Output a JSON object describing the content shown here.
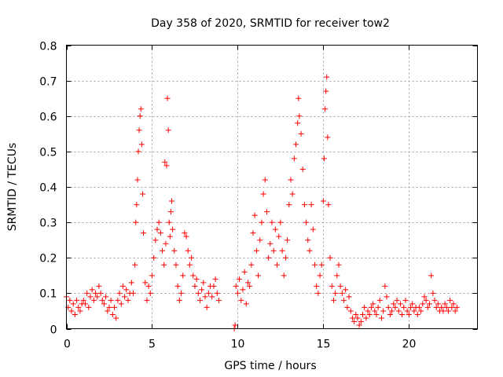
{
  "chart_data": {
    "type": "scatter",
    "title": "Day 358 of 2020, SRMTID for receiver tow2",
    "xlabel": "GPS time / hours",
    "ylabel": "SRMTID / TECUs",
    "xlim": [
      0,
      24
    ],
    "ylim": [
      0,
      0.8
    ],
    "x_ticks": [
      0,
      5,
      10,
      15,
      20
    ],
    "y_ticks": [
      0,
      0.1,
      0.2,
      0.3,
      0.4,
      0.5,
      0.6,
      0.7,
      0.8
    ],
    "x_tick_labels": [
      "0",
      "5",
      "10",
      "15",
      "20"
    ],
    "y_tick_labels": [
      "0",
      "0.1",
      "0.2",
      "0.3",
      "0.4",
      "0.5",
      "0.6",
      "0.7",
      "0.8"
    ],
    "grid": true,
    "marker": "+",
    "color": "#ff0000",
    "series": [
      {
        "name": "SRMTID",
        "points": [
          [
            0.0,
            0.09
          ],
          [
            0.1,
            0.06
          ],
          [
            0.2,
            0.08
          ],
          [
            0.3,
            0.05
          ],
          [
            0.4,
            0.07
          ],
          [
            0.5,
            0.04
          ],
          [
            0.6,
            0.08
          ],
          [
            0.7,
            0.06
          ],
          [
            0.8,
            0.05
          ],
          [
            0.9,
            0.07
          ],
          [
            1.0,
            0.08
          ],
          [
            1.1,
            0.07
          ],
          [
            1.2,
            0.1
          ],
          [
            1.3,
            0.06
          ],
          [
            1.4,
            0.09
          ],
          [
            1.5,
            0.11
          ],
          [
            1.6,
            0.08
          ],
          [
            1.7,
            0.1
          ],
          [
            1.8,
            0.09
          ],
          [
            1.9,
            0.12
          ],
          [
            2.0,
            0.1
          ],
          [
            2.1,
            0.08
          ],
          [
            2.2,
            0.07
          ],
          [
            2.3,
            0.09
          ],
          [
            2.4,
            0.05
          ],
          [
            2.5,
            0.06
          ],
          [
            2.6,
            0.08
          ],
          [
            2.7,
            0.04
          ],
          [
            2.8,
            0.06
          ],
          [
            2.9,
            0.03
          ],
          [
            3.0,
            0.08
          ],
          [
            3.1,
            0.1
          ],
          [
            3.2,
            0.07
          ],
          [
            3.3,
            0.12
          ],
          [
            3.4,
            0.09
          ],
          [
            3.5,
            0.11
          ],
          [
            3.6,
            0.08
          ],
          [
            3.7,
            0.1
          ],
          [
            3.8,
            0.13
          ],
          [
            3.9,
            0.1
          ],
          [
            4.0,
            0.18
          ],
          [
            4.05,
            0.3
          ],
          [
            4.1,
            0.35
          ],
          [
            4.15,
            0.42
          ],
          [
            4.2,
            0.5
          ],
          [
            4.25,
            0.56
          ],
          [
            4.3,
            0.6
          ],
          [
            4.35,
            0.62
          ],
          [
            4.4,
            0.52
          ],
          [
            4.45,
            0.38
          ],
          [
            4.5,
            0.27
          ],
          [
            4.6,
            0.13
          ],
          [
            4.7,
            0.08
          ],
          [
            4.8,
            0.12
          ],
          [
            4.9,
            0.1
          ],
          [
            5.0,
            0.15
          ],
          [
            5.1,
            0.2
          ],
          [
            5.2,
            0.25
          ],
          [
            5.3,
            0.28
          ],
          [
            5.4,
            0.3
          ],
          [
            5.5,
            0.27
          ],
          [
            5.6,
            0.22
          ],
          [
            5.7,
            0.18
          ],
          [
            5.75,
            0.47
          ],
          [
            5.8,
            0.24
          ],
          [
            5.85,
            0.46
          ],
          [
            5.9,
            0.65
          ],
          [
            5.95,
            0.56
          ],
          [
            6.0,
            0.3
          ],
          [
            6.05,
            0.26
          ],
          [
            6.1,
            0.33
          ],
          [
            6.15,
            0.36
          ],
          [
            6.2,
            0.28
          ],
          [
            6.3,
            0.22
          ],
          [
            6.4,
            0.18
          ],
          [
            6.5,
            0.12
          ],
          [
            6.6,
            0.08
          ],
          [
            6.7,
            0.1
          ],
          [
            6.8,
            0.15
          ],
          [
            6.9,
            0.27
          ],
          [
            7.0,
            0.26
          ],
          [
            7.1,
            0.22
          ],
          [
            7.2,
            0.18
          ],
          [
            7.3,
            0.2
          ],
          [
            7.4,
            0.15
          ],
          [
            7.5,
            0.12
          ],
          [
            7.6,
            0.14
          ],
          [
            7.7,
            0.1
          ],
          [
            7.8,
            0.08
          ],
          [
            7.9,
            0.11
          ],
          [
            8.0,
            0.13
          ],
          [
            8.1,
            0.09
          ],
          [
            8.2,
            0.06
          ],
          [
            8.3,
            0.1
          ],
          [
            8.4,
            0.12
          ],
          [
            8.5,
            0.09
          ],
          [
            8.6,
            0.12
          ],
          [
            8.7,
            0.14
          ],
          [
            8.8,
            0.1
          ],
          [
            8.9,
            0.08
          ],
          [
            9.8,
            0.0
          ],
          [
            9.85,
            0.01
          ],
          [
            9.9,
            0.12
          ],
          [
            10.0,
            0.1
          ],
          [
            10.1,
            0.14
          ],
          [
            10.2,
            0.08
          ],
          [
            10.3,
            0.11
          ],
          [
            10.4,
            0.16
          ],
          [
            10.5,
            0.07
          ],
          [
            10.6,
            0.13
          ],
          [
            10.7,
            0.12
          ],
          [
            10.8,
            0.18
          ],
          [
            10.9,
            0.27
          ],
          [
            11.0,
            0.32
          ],
          [
            11.1,
            0.22
          ],
          [
            11.2,
            0.15
          ],
          [
            11.3,
            0.25
          ],
          [
            11.4,
            0.3
          ],
          [
            11.5,
            0.38
          ],
          [
            11.6,
            0.42
          ],
          [
            11.7,
            0.33
          ],
          [
            11.8,
            0.2
          ],
          [
            11.9,
            0.24
          ],
          [
            12.0,
            0.3
          ],
          [
            12.1,
            0.22
          ],
          [
            12.2,
            0.28
          ],
          [
            12.3,
            0.18
          ],
          [
            12.4,
            0.26
          ],
          [
            12.5,
            0.3
          ],
          [
            12.6,
            0.22
          ],
          [
            12.7,
            0.15
          ],
          [
            12.8,
            0.2
          ],
          [
            12.9,
            0.25
          ],
          [
            13.0,
            0.35
          ],
          [
            13.1,
            0.42
          ],
          [
            13.2,
            0.38
          ],
          [
            13.3,
            0.48
          ],
          [
            13.4,
            0.52
          ],
          [
            13.5,
            0.58
          ],
          [
            13.55,
            0.65
          ],
          [
            13.6,
            0.6
          ],
          [
            13.7,
            0.55
          ],
          [
            13.8,
            0.45
          ],
          [
            13.9,
            0.35
          ],
          [
            14.0,
            0.3
          ],
          [
            14.1,
            0.25
          ],
          [
            14.2,
            0.22
          ],
          [
            14.3,
            0.35
          ],
          [
            14.4,
            0.28
          ],
          [
            14.5,
            0.18
          ],
          [
            14.6,
            0.12
          ],
          [
            14.7,
            0.1
          ],
          [
            14.8,
            0.15
          ],
          [
            14.9,
            0.18
          ],
          [
            15.0,
            0.36
          ],
          [
            15.05,
            0.48
          ],
          [
            15.1,
            0.62
          ],
          [
            15.15,
            0.67
          ],
          [
            15.2,
            0.71
          ],
          [
            15.25,
            0.54
          ],
          [
            15.3,
            0.35
          ],
          [
            15.4,
            0.2
          ],
          [
            15.5,
            0.12
          ],
          [
            15.6,
            0.08
          ],
          [
            15.7,
            0.1
          ],
          [
            15.8,
            0.15
          ],
          [
            15.9,
            0.18
          ],
          [
            16.0,
            0.12
          ],
          [
            16.1,
            0.1
          ],
          [
            16.2,
            0.08
          ],
          [
            16.3,
            0.11
          ],
          [
            16.4,
            0.06
          ],
          [
            16.5,
            0.09
          ],
          [
            16.6,
            0.05
          ],
          [
            16.7,
            0.03
          ],
          [
            16.8,
            0.02
          ],
          [
            16.9,
            0.04
          ],
          [
            17.0,
            0.03
          ],
          [
            17.1,
            0.01
          ],
          [
            17.2,
            0.02
          ],
          [
            17.3,
            0.04
          ],
          [
            17.4,
            0.06
          ],
          [
            17.5,
            0.03
          ],
          [
            17.6,
            0.05
          ],
          [
            17.7,
            0.04
          ],
          [
            17.8,
            0.06
          ],
          [
            17.9,
            0.07
          ],
          [
            18.0,
            0.05
          ],
          [
            18.1,
            0.04
          ],
          [
            18.2,
            0.06
          ],
          [
            18.3,
            0.08
          ],
          [
            18.4,
            0.03
          ],
          [
            18.5,
            0.05
          ],
          [
            18.6,
            0.12
          ],
          [
            18.7,
            0.09
          ],
          [
            18.8,
            0.06
          ],
          [
            18.9,
            0.04
          ],
          [
            19.0,
            0.05
          ],
          [
            19.1,
            0.07
          ],
          [
            19.2,
            0.06
          ],
          [
            19.3,
            0.08
          ],
          [
            19.4,
            0.05
          ],
          [
            19.5,
            0.07
          ],
          [
            19.6,
            0.04
          ],
          [
            19.7,
            0.06
          ],
          [
            19.8,
            0.08
          ],
          [
            19.9,
            0.05
          ],
          [
            20.0,
            0.04
          ],
          [
            20.1,
            0.06
          ],
          [
            20.2,
            0.07
          ],
          [
            20.3,
            0.05
          ],
          [
            20.4,
            0.06
          ],
          [
            20.5,
            0.04
          ],
          [
            20.6,
            0.06
          ],
          [
            20.7,
            0.05
          ],
          [
            20.8,
            0.07
          ],
          [
            20.9,
            0.09
          ],
          [
            21.0,
            0.08
          ],
          [
            21.1,
            0.06
          ],
          [
            21.2,
            0.07
          ],
          [
            21.3,
            0.15
          ],
          [
            21.4,
            0.1
          ],
          [
            21.5,
            0.08
          ],
          [
            21.6,
            0.06
          ],
          [
            21.7,
            0.07
          ],
          [
            21.8,
            0.05
          ],
          [
            21.9,
            0.06
          ],
          [
            22.0,
            0.05
          ],
          [
            22.1,
            0.07
          ],
          [
            22.2,
            0.06
          ],
          [
            22.3,
            0.05
          ],
          [
            22.4,
            0.08
          ],
          [
            22.5,
            0.06
          ],
          [
            22.6,
            0.07
          ],
          [
            22.7,
            0.05
          ],
          [
            22.8,
            0.06
          ]
        ]
      }
    ]
  }
}
